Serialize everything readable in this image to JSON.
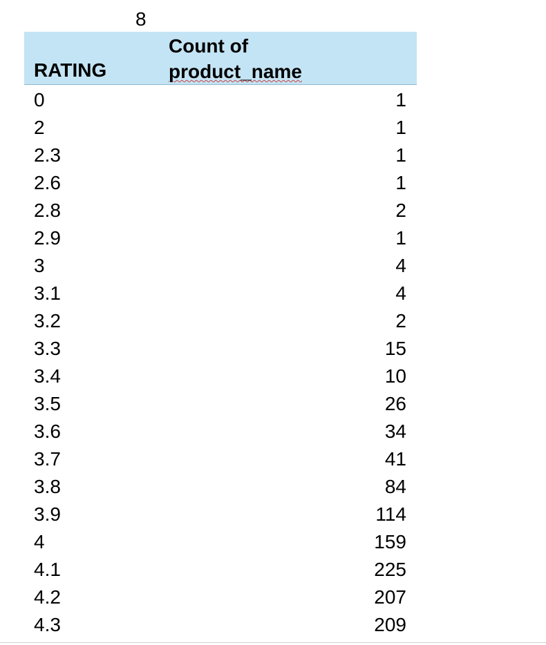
{
  "top_value": "8",
  "table": {
    "header": {
      "rating": "RATING",
      "count_line1": "Count of",
      "count_line2": "product_name"
    },
    "rows": [
      {
        "rating": "0",
        "count": "1"
      },
      {
        "rating": "2",
        "count": "1"
      },
      {
        "rating": "2.3",
        "count": "1"
      },
      {
        "rating": "2.6",
        "count": "1"
      },
      {
        "rating": "2.8",
        "count": "2"
      },
      {
        "rating": "2.9",
        "count": "1"
      },
      {
        "rating": "3",
        "count": "4"
      },
      {
        "rating": "3.1",
        "count": "4"
      },
      {
        "rating": "3.2",
        "count": "2"
      },
      {
        "rating": "3.3",
        "count": "15"
      },
      {
        "rating": "3.4",
        "count": "10"
      },
      {
        "rating": "3.5",
        "count": "26"
      },
      {
        "rating": "3.6",
        "count": "34"
      },
      {
        "rating": "3.7",
        "count": "41"
      },
      {
        "rating": "3.8",
        "count": "84"
      },
      {
        "rating": "3.9",
        "count": "114"
      },
      {
        "rating": "4",
        "count": "159"
      },
      {
        "rating": "4.1",
        "count": "225"
      },
      {
        "rating": "4.2",
        "count": "207"
      },
      {
        "rating": "4.3",
        "count": "209"
      }
    ]
  },
  "colors": {
    "header_fill": "#c3e4f4",
    "spellcheck_underline": "#d04040"
  }
}
